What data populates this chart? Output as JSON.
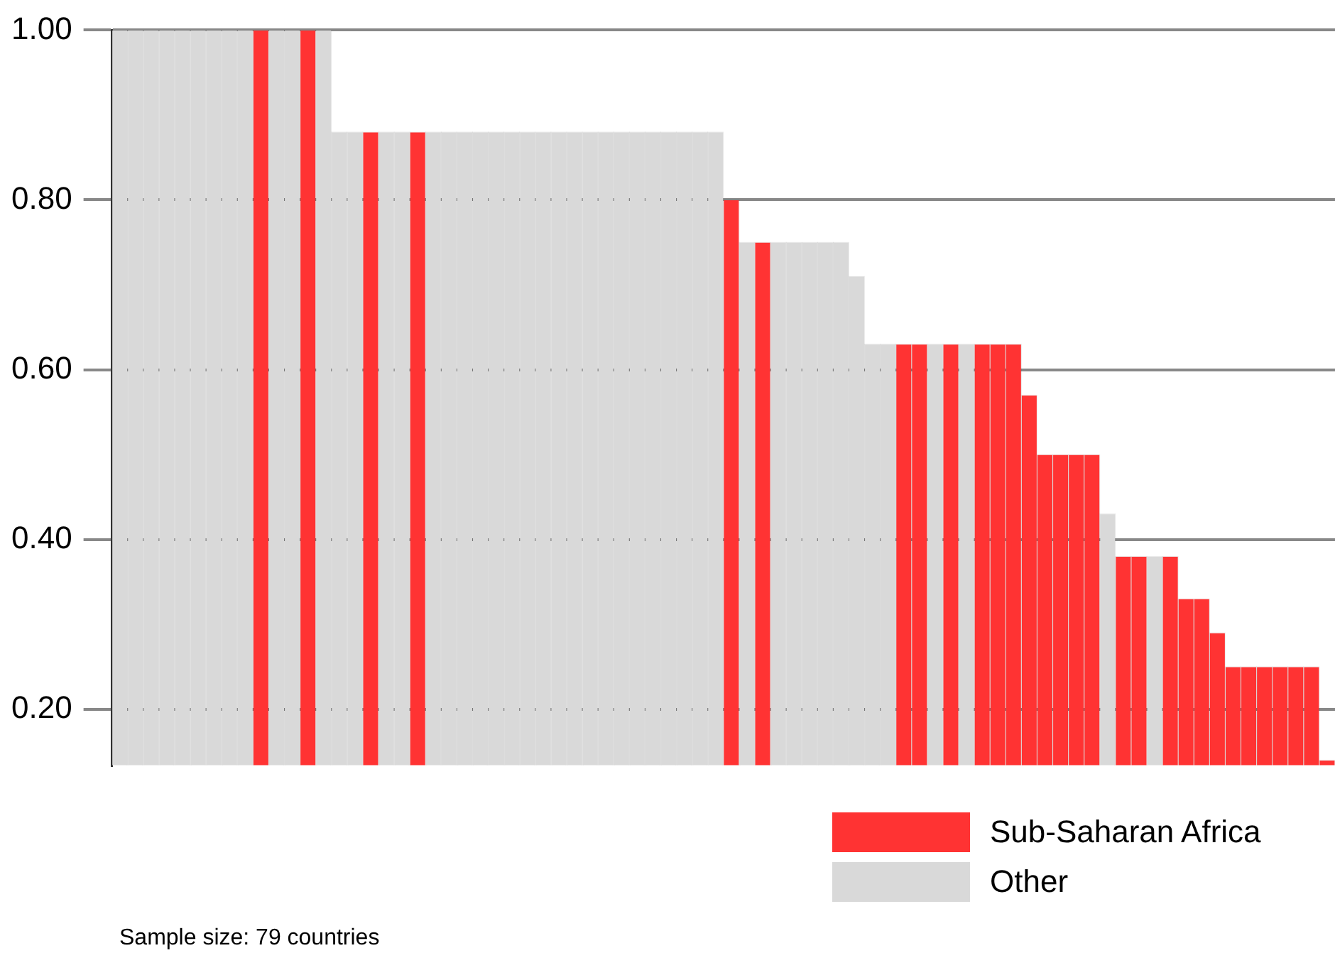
{
  "chart_data": {
    "type": "bar",
    "stacked": true,
    "categories": [
      null,
      null,
      null,
      null,
      null,
      null,
      null,
      null,
      null,
      null,
      null,
      null,
      null,
      null,
      null,
      null,
      null,
      null,
      null,
      null,
      null,
      null,
      null,
      null,
      null,
      null,
      null,
      null,
      null,
      null,
      null,
      null,
      null,
      null,
      null,
      null,
      null,
      null,
      null,
      null,
      null,
      null,
      null,
      null,
      null,
      null,
      null,
      null,
      null,
      null,
      null,
      null,
      null,
      null,
      null,
      null,
      null,
      null,
      null,
      null,
      null,
      null,
      null,
      null,
      null,
      null,
      null,
      null,
      null,
      null,
      null,
      null,
      null,
      null,
      null,
      null,
      null,
      null
    ],
    "series": [
      {
        "name": "Sub-Saharan Africa",
        "color": "#ff3333",
        "values": [
          null,
          null,
          null,
          null,
          null,
          null,
          null,
          null,
          null,
          1.0,
          null,
          null,
          1.0,
          null,
          null,
          null,
          0.88,
          null,
          null,
          0.88,
          null,
          null,
          null,
          null,
          null,
          null,
          null,
          null,
          null,
          null,
          null,
          null,
          null,
          null,
          null,
          null,
          null,
          null,
          null,
          0.8,
          null,
          0.75,
          null,
          null,
          null,
          null,
          null,
          null,
          null,
          null,
          0.63,
          0.63,
          null,
          0.63,
          null,
          0.63,
          0.63,
          0.63,
          0.57,
          0.5,
          0.5,
          0.5,
          0.5,
          null,
          0.38,
          0.38,
          null,
          0.38,
          0.33,
          0.33,
          0.29,
          0.25,
          0.25,
          0.25,
          0.25,
          0.25,
          0.25,
          0.14
        ]
      },
      {
        "name": "Other",
        "color": "#d9d9d9",
        "values": [
          1.0,
          1.0,
          1.0,
          1.0,
          1.0,
          1.0,
          1.0,
          1.0,
          1.0,
          null,
          1.0,
          1.0,
          null,
          1.0,
          0.88,
          0.88,
          null,
          0.88,
          0.88,
          null,
          0.88,
          0.88,
          0.88,
          0.88,
          0.88,
          0.88,
          0.88,
          0.88,
          0.88,
          0.88,
          0.88,
          0.88,
          0.88,
          0.88,
          0.88,
          0.88,
          0.88,
          0.88,
          0.88,
          null,
          0.75,
          null,
          0.75,
          0.75,
          0.75,
          0.75,
          0.75,
          0.71,
          0.63,
          0.63,
          null,
          null,
          0.63,
          null,
          0.63,
          null,
          null,
          null,
          null,
          null,
          null,
          null,
          null,
          0.43,
          null,
          null,
          0.38,
          null,
          null,
          null,
          null,
          null,
          null,
          null,
          null,
          null,
          null,
          null
        ]
      }
    ],
    "ylim": [
      0.134,
      1.0
    ],
    "yticks": [
      {
        "value": 0.2,
        "label": "0.20"
      },
      {
        "value": 0.4,
        "label": "0.40"
      },
      {
        "value": 0.6,
        "label": "0.60"
      },
      {
        "value": 0.8,
        "label": "0.80"
      },
      {
        "value": 1.0,
        "label": "1.00"
      }
    ],
    "grid": "y",
    "legend": "bottom right",
    "tick_labels": "y",
    "annotations": [
      "Sample size: 79 countries"
    ]
  }
}
